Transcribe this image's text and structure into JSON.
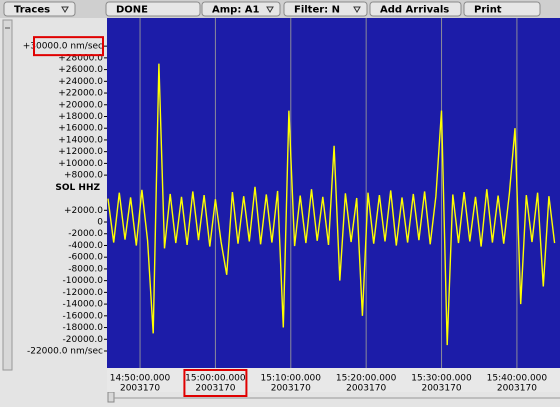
{
  "toolbar": [
    "Traces",
    "DONE",
    "Amp: A1",
    "Filter: N",
    "Add Arrivals",
    "Print"
  ],
  "chart_data": {
    "type": "line",
    "series": [
      {
        "name": "SOL HHZ",
        "color": "#ffff00",
        "x": [
          53145,
          53190,
          53235,
          53280,
          53325,
          53370,
          53415,
          53460,
          53505,
          53550,
          53595,
          53640,
          53685,
          53730,
          53775,
          53820,
          53865,
          53910,
          53955,
          54000,
          54045,
          54090,
          54135,
          54180,
          54225,
          54270,
          54315,
          54360,
          54405,
          54450,
          54495,
          54540,
          54585,
          54630,
          54675,
          54720,
          54765,
          54810,
          54855,
          54900,
          54945,
          54990,
          55035,
          55080,
          55125,
          55170,
          55215,
          55260,
          55305,
          55350,
          55395,
          55440,
          55485,
          55530,
          55575,
          55620,
          55665,
          55710,
          55755,
          55800,
          55845,
          55890,
          55935,
          55980,
          56025,
          56070,
          56115,
          56160,
          56205,
          56250,
          56295,
          56340,
          56385,
          56430,
          56475,
          56520,
          56565,
          56610,
          56655,
          56700
        ],
        "values": [
          4000,
          -3500,
          5000,
          -3000,
          4200,
          -4000,
          5500,
          -3200,
          -19000,
          27000,
          -4500,
          4800,
          -3600,
          4300,
          -3900,
          5200,
          -3100,
          4600,
          -4200,
          3900,
          -3400,
          -9000,
          5100,
          -3700,
          4400,
          -3300,
          6000,
          -3800,
          4700,
          -3500,
          5300,
          -18000,
          19000,
          -4100,
          4500,
          -3600,
          5600,
          -3200,
          4300,
          -3900,
          13000,
          -10000,
          4900,
          -3400,
          4100,
          -16000,
          5000,
          -3700,
          4600,
          -3300,
          5400,
          -4000,
          4200,
          -3500,
          4800,
          -3100,
          5200,
          -3800,
          4400,
          19000,
          -21000,
          4700,
          -3600,
          5100,
          -3300,
          4300,
          -4200,
          5600,
          -3500,
          4500,
          -3700,
          4900,
          16000,
          -14000,
          4600,
          -3400,
          5000,
          -11000,
          4400,
          -3600
        ]
      }
    ],
    "xlim": [
      53137,
      56743
    ],
    "xticks": [
      {
        "value": 53400,
        "label": "14:50:00.000"
      },
      {
        "value": 54000,
        "label": "15:00:00.000"
      },
      {
        "value": 54600,
        "label": "15:10:00.000"
      },
      {
        "value": 55200,
        "label": "15:20:00.000"
      },
      {
        "value": 55800,
        "label": "15:30:00.000"
      },
      {
        "value": 56400,
        "label": "15:40:00.000"
      }
    ],
    "xtick_dates": [
      "2003170",
      "2003170",
      "2003170",
      "2003170",
      "2003170",
      "2003170"
    ],
    "ylim": [
      -24900,
      34800
    ],
    "yticks": [
      {
        "value": 30000,
        "label": "+30000.0 nm/sec"
      },
      {
        "value": 28000,
        "label": "+28000.0"
      },
      {
        "value": 26000,
        "label": "+26000.0"
      },
      {
        "value": 24000,
        "label": "+24000.0"
      },
      {
        "value": 22000,
        "label": "+22000.0"
      },
      {
        "value": 20000,
        "label": "+20000.0"
      },
      {
        "value": 18000,
        "label": "+18000.0"
      },
      {
        "value": 16000,
        "label": "+16000.0"
      },
      {
        "value": 14000,
        "label": "+14000.0"
      },
      {
        "value": 12000,
        "label": "+12000.0"
      },
      {
        "value": 10000,
        "label": "+10000.0"
      },
      {
        "value": 8000,
        "label": "+8000.0"
      },
      {
        "value": 2000,
        "label": "+2000.0"
      },
      0,
      {
        "value": -2000,
        "label": "-2000.0"
      },
      {
        "value": -4000,
        "label": "-4000.0"
      },
      {
        "value": -6000,
        "label": "-6000.0"
      },
      {
        "value": -8000,
        "label": "-8000.0"
      },
      {
        "value": -10000,
        "label": "-10000.0"
      },
      {
        "value": -12000,
        "label": "-12000.0"
      },
      {
        "value": -14000,
        "label": "-14000.0"
      },
      {
        "value": -16000,
        "label": "-16000.0"
      },
      {
        "value": -18000,
        "label": "-18000.0"
      },
      {
        "value": -20000,
        "label": "-20000.0"
      },
      {
        "value": -22000,
        "label": "-22000.0 nm/sec"
      }
    ],
    "grid": true,
    "background": "#1c1ca8"
  }
}
